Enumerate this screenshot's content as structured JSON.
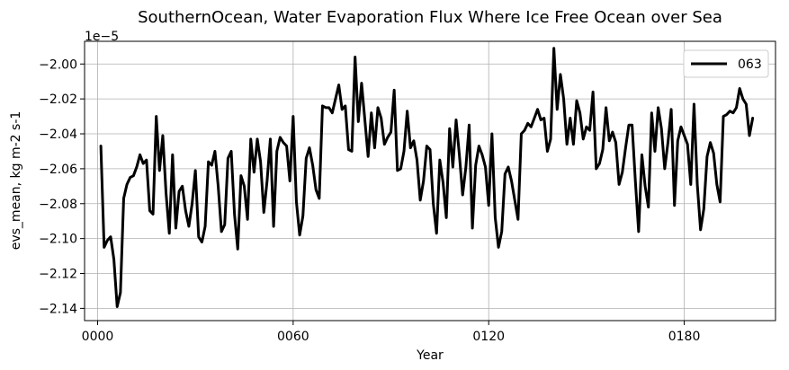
{
  "chart_data": {
    "type": "line",
    "title": "SouthernOcean, Water Evaporation Flux Where Ice Free Ocean over Sea",
    "xlabel": "Year",
    "ylabel": "evs_mean, kg m-2 s-1",
    "offset_text": "1e−5",
    "x_ticks": [
      "0000",
      "0060",
      "0120",
      "0180"
    ],
    "x_tick_values": [
      0,
      60,
      120,
      180
    ],
    "y_ticks": [
      "−2.14",
      "−2.12",
      "−2.10",
      "−2.08",
      "−2.06",
      "−2.04",
      "−2.02",
      "−2.00"
    ],
    "y_tick_values": [
      -2.14,
      -2.12,
      -2.1,
      -2.08,
      -2.06,
      -2.04,
      -2.02,
      -2.0
    ],
    "xlim": [
      -4,
      208
    ],
    "ylim": [
      -2.147,
      -1.987
    ],
    "grid": true,
    "legend_position": "top-right",
    "series": [
      {
        "name": "063",
        "color": "#000000",
        "x_start": 1,
        "values": [
          -2.047,
          -2.105,
          -2.101,
          -2.099,
          -2.112,
          -2.139,
          -2.131,
          -2.077,
          -2.069,
          -2.065,
          -2.064,
          -2.059,
          -2.052,
          -2.057,
          -2.055,
          -2.084,
          -2.086,
          -2.03,
          -2.061,
          -2.041,
          -2.074,
          -2.097,
          -2.052,
          -2.094,
          -2.073,
          -2.07,
          -2.084,
          -2.093,
          -2.08,
          -2.061,
          -2.099,
          -2.102,
          -2.093,
          -2.056,
          -2.058,
          -2.05,
          -2.07,
          -2.096,
          -2.092,
          -2.054,
          -2.05,
          -2.086,
          -2.106,
          -2.064,
          -2.07,
          -2.089,
          -2.043,
          -2.062,
          -2.043,
          -2.056,
          -2.085,
          -2.067,
          -2.043,
          -2.093,
          -2.05,
          -2.042,
          -2.045,
          -2.047,
          -2.067,
          -2.03,
          -2.079,
          -2.098,
          -2.087,
          -2.054,
          -2.048,
          -2.058,
          -2.072,
          -2.077,
          -2.024,
          -2.025,
          -2.025,
          -2.028,
          -2.02,
          -2.012,
          -2.026,
          -2.024,
          -2.049,
          -2.05,
          -1.996,
          -2.033,
          -2.011,
          -2.032,
          -2.053,
          -2.028,
          -2.048,
          -2.025,
          -2.031,
          -2.046,
          -2.042,
          -2.039,
          -2.015,
          -2.061,
          -2.06,
          -2.05,
          -2.027,
          -2.048,
          -2.044,
          -2.055,
          -2.078,
          -2.067,
          -2.047,
          -2.049,
          -2.08,
          -2.097,
          -2.055,
          -2.068,
          -2.088,
          -2.037,
          -2.059,
          -2.032,
          -2.052,
          -2.075,
          -2.059,
          -2.035,
          -2.094,
          -2.058,
          -2.047,
          -2.052,
          -2.059,
          -2.081,
          -2.04,
          -2.088,
          -2.105,
          -2.096,
          -2.063,
          -2.059,
          -2.067,
          -2.078,
          -2.089,
          -2.04,
          -2.038,
          -2.034,
          -2.036,
          -2.031,
          -2.026,
          -2.032,
          -2.031,
          -2.05,
          -2.043,
          -1.991,
          -2.026,
          -2.006,
          -2.02,
          -2.046,
          -2.031,
          -2.046,
          -2.021,
          -2.028,
          -2.043,
          -2.036,
          -2.038,
          -2.016,
          -2.06,
          -2.057,
          -2.049,
          -2.025,
          -2.044,
          -2.039,
          -2.045,
          -2.069,
          -2.062,
          -2.048,
          -2.035,
          -2.035,
          -2.067,
          -2.096,
          -2.052,
          -2.07,
          -2.082,
          -2.028,
          -2.05,
          -2.025,
          -2.037,
          -2.06,
          -2.045,
          -2.026,
          -2.081,
          -2.044,
          -2.036,
          -2.041,
          -2.046,
          -2.069,
          -2.023,
          -2.069,
          -2.095,
          -2.083,
          -2.053,
          -2.045,
          -2.051,
          -2.069,
          -2.079,
          -2.03,
          -2.029,
          -2.027,
          -2.028,
          -2.025,
          -2.014,
          -2.02,
          -2.023,
          -2.041,
          -2.031
        ]
      }
    ]
  }
}
